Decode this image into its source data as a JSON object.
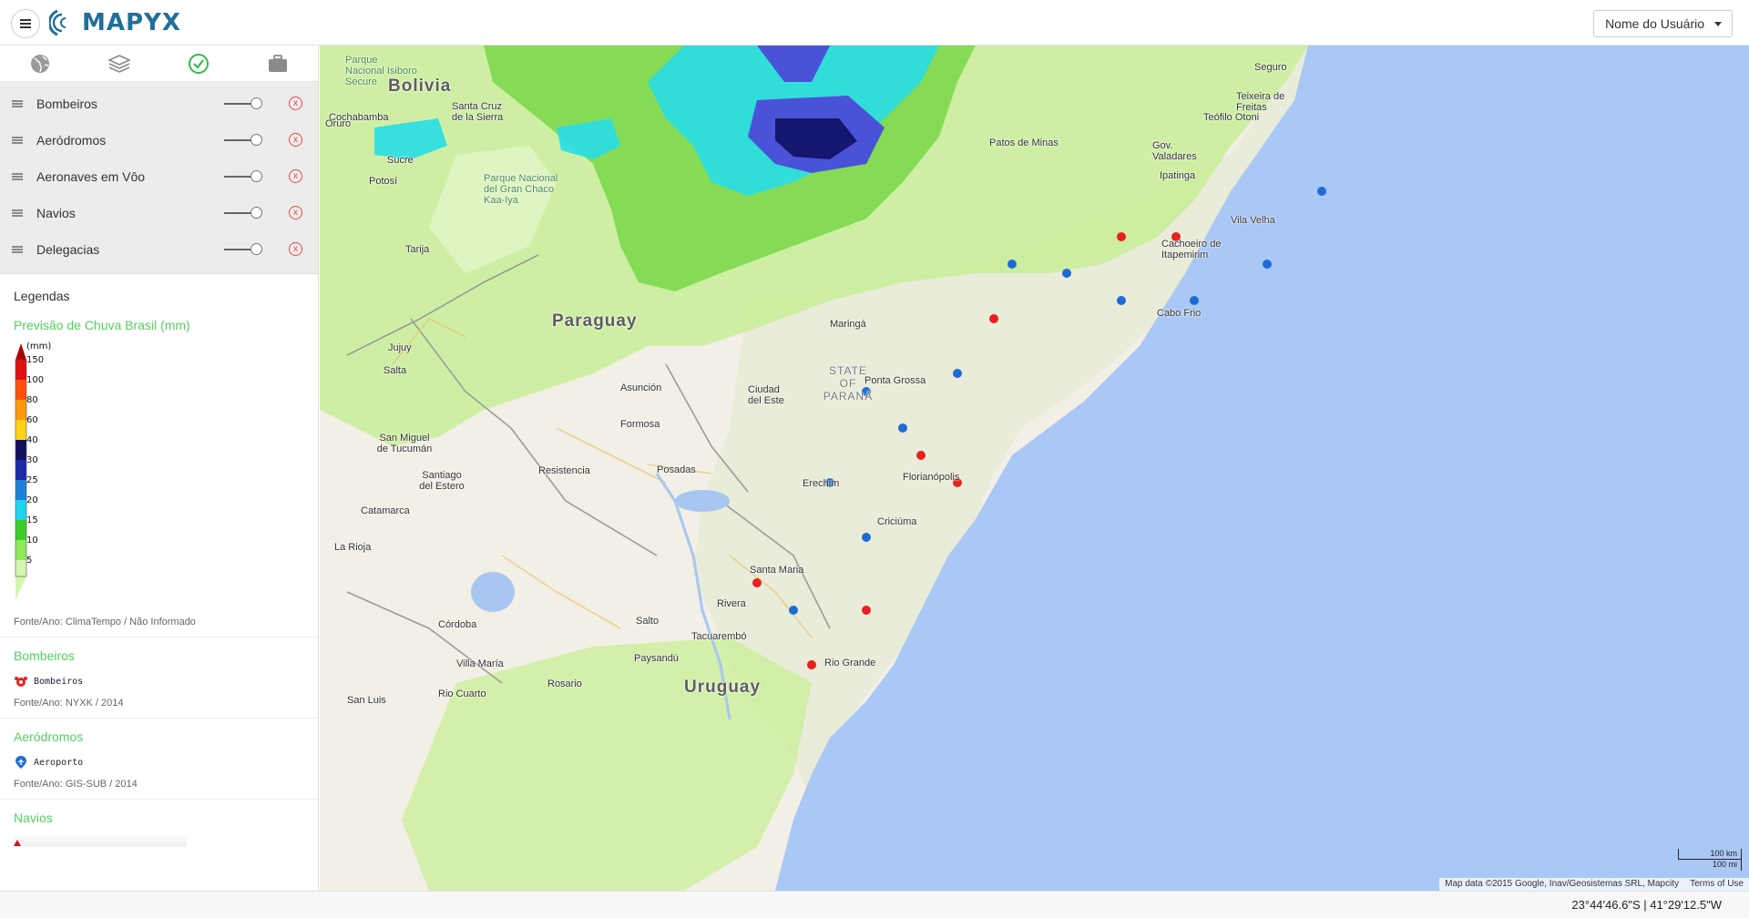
{
  "app": {
    "logo_text": "MAPYX",
    "user_menu_label": "Nome do Usuário"
  },
  "sidebar": {
    "tabs": [
      {
        "name": "globe-icon"
      },
      {
        "name": "layers-icon"
      },
      {
        "name": "check-circle-icon"
      },
      {
        "name": "briefcase-icon"
      }
    ],
    "layers": [
      {
        "label": "Bombeiros"
      },
      {
        "label": "Aeródromos"
      },
      {
        "label": "Aeronaves em Vôo"
      },
      {
        "label": "Navios"
      },
      {
        "label": "Delegacias"
      }
    ],
    "remove_glyph": "x",
    "legend_heading": "Legendas",
    "rain": {
      "title": "Previsão de Chuva Brasil (mm)",
      "unit": "(mm)",
      "scale": [
        "150",
        "100",
        "80",
        "60",
        "40",
        "30",
        "25",
        "20",
        "15",
        "10",
        "5"
      ],
      "source": "Fonte/Ano: ClimaTempo / Não Informado"
    },
    "bombeiros": {
      "title": "Bombeiros",
      "item": "Bombeiros",
      "source": "Fonte/Ano: NYXK / 2014"
    },
    "aerodromos": {
      "title": "Aeródromos",
      "item": "Aeroporto",
      "source": "Fonte/Ano: GIS-SUB / 2014"
    },
    "navios": {
      "title": "Navios"
    }
  },
  "map": {
    "labels": {
      "bolivia": "Bolivia",
      "paraguay": "Paraguay",
      "uruguay": "Uruguay",
      "cochabamba": "Cochabamba",
      "santa_cruz": "Santa Cruz de la Sierra",
      "oruro": "Oruro",
      "sucre": "Sucre",
      "potosi": "Potosí",
      "tarija": "Tarija",
      "jujuy": "Jujuy",
      "salta": "Salta",
      "tucuman": "San Miguel de Tucumán",
      "santiago": "Santiago del Estero",
      "catamarca": "Catamarca",
      "la_rioja": "La Rioja",
      "cordoba": "Córdoba",
      "resistencia": "Resistencia",
      "posadas": "Posadas",
      "formosa": "Formosa",
      "asuncion": "Asunción",
      "rosario": "Rosario",
      "villa_maria": "Villa María",
      "rio_cuarto": "Rio Cuarto",
      "san_luis": "San Luis",
      "paysandu": "Paysandú",
      "salto": "Salto",
      "rivera": "Rivera",
      "tacuarembo": "Tacuarembó",
      "santa_maria": "Santa Maria",
      "rio_grande": "Rio Grande",
      "erechim": "Erechim",
      "criciuma": "Criciúma",
      "florianopolis": "Florianópolis",
      "ponta_grossa": "Ponta Grossa",
      "maringa": "Maringá",
      "parana": "STATE OF PARANÁ",
      "cabo_frio": "Cabo Frio",
      "gov_valadares": "Gov. Valadares",
      "teofilo": "Teófilo Otoni",
      "ipatinga": "Ipatinga",
      "patos": "Patos de Minas",
      "seguro": "Seguro",
      "teixeira": "Teixeira de Freitas",
      "vila_velha": "Vila Velha",
      "cachoeiro": "Cachoeiro de Itapemirim",
      "parque_isiboro": "Parque Nacional Isiboro Secure",
      "parque_chaco": "Parque Nacional del Gran Chaco Kaa-Iya",
      "ciudad_del_este": "Ciudad del Este"
    },
    "attribution": "Map data ©2015 Google, Inav/Geosistemas SRL, Mapcity",
    "terms": "Terms of Use",
    "scale_km": "100 km",
    "scale_mi": "100 mi"
  },
  "footer": {
    "coordinates": "23°44'46.6\"S | 41°29'12.5\"W"
  },
  "colors": {
    "accent_green": "#52d15e",
    "brand_blue": "#1f6f9a",
    "ocean": "#aac8f5",
    "fire_red": "#e8201f",
    "airport_blue": "#1f6bd6"
  }
}
